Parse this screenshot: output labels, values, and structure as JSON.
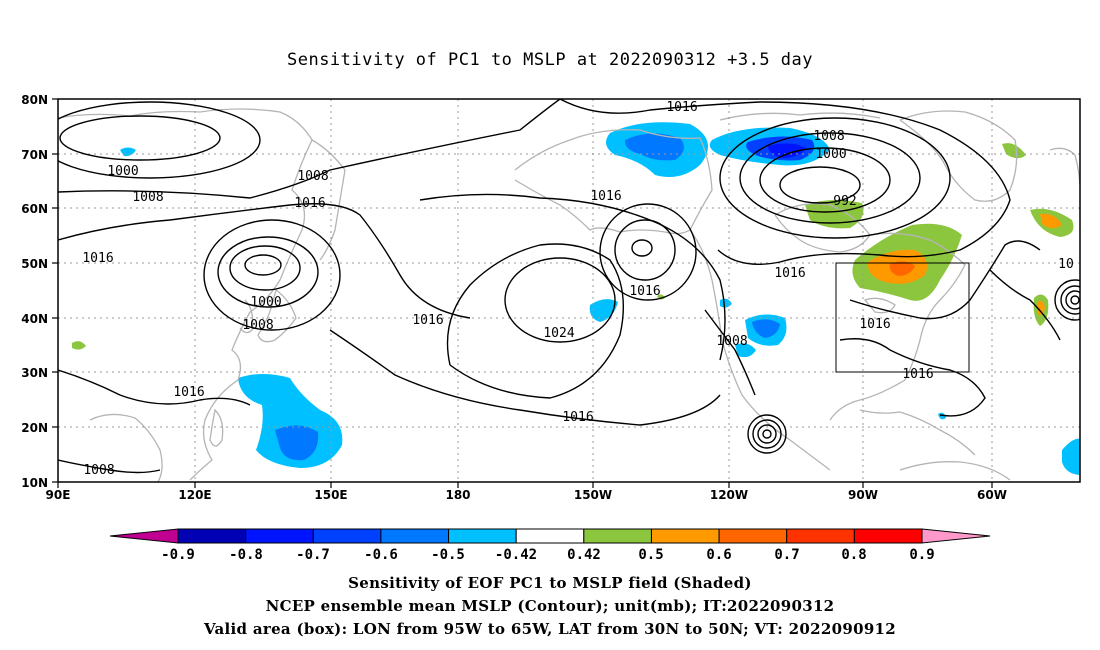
{
  "title": "Sensitivity of PC1 to MSLP at 2022090312 +3.5 day",
  "map": {
    "lon_labels": [
      "90E",
      "120E",
      "150E",
      "180",
      "150W",
      "120W",
      "90W",
      "60W"
    ],
    "lat_labels": [
      "80N",
      "70N",
      "60N",
      "50N",
      "40N",
      "30N",
      "20N",
      "10N"
    ],
    "contour_labels": [
      "1016",
      "1000",
      "1008",
      "1016",
      "1016",
      "1000",
      "1008",
      "1008",
      "1016",
      "1016",
      "1016",
      "1016",
      "1024",
      "1016",
      "1008",
      "1000",
      "992",
      "1016",
      "1016",
      "1016",
      "1008",
      "1016",
      "1008",
      "10"
    ],
    "valid_box": {
      "lon_west": -95,
      "lon_east": -65,
      "lat_south": 30,
      "lat_north": 50
    },
    "colors": {
      "coast": "#b4b4b4",
      "contour": "#000000",
      "box": "#000000"
    }
  },
  "colorbar": {
    "labels": [
      "-0.9",
      "-0.8",
      "-0.7",
      "-0.6",
      "-0.5",
      "-0.42",
      "0.42",
      "0.5",
      "0.6",
      "0.7",
      "0.8",
      "0.9"
    ],
    "colors": [
      "#c00090",
      "#0000b4",
      "#0014ff",
      "#0040ff",
      "#0078ff",
      "#00c0ff",
      "#ffffff",
      "#8cc63f",
      "#ff9900",
      "#ff6600",
      "#ff3300",
      "#ff0000",
      "#ff99cc"
    ]
  },
  "captions": {
    "line1": "Sensitivity of EOF PC1 to MSLP field (Shaded)",
    "line2": "NCEP ensemble mean MSLP (Contour); unit(mb); IT:2022090312",
    "line3": "Valid area (box): LON from 95W to 65W, LAT from 30N to 50N; VT: 2022090912"
  }
}
